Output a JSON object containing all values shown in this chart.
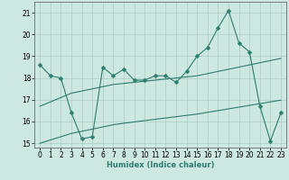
{
  "xlabel": "Humidex (Indice chaleur)",
  "background_color": "#cce8e0",
  "grid_color": "#aaccc4",
  "line_color": "#2e7d6e",
  "x_data": [
    0,
    1,
    2,
    3,
    4,
    5,
    6,
    7,
    8,
    9,
    10,
    11,
    12,
    13,
    14,
    15,
    16,
    17,
    18,
    19,
    20,
    21,
    22,
    23
  ],
  "y_main": [
    18.6,
    18.1,
    18.0,
    16.4,
    15.2,
    15.3,
    18.5,
    18.1,
    18.4,
    17.9,
    17.9,
    18.1,
    18.1,
    17.8,
    18.3,
    19.0,
    19.4,
    20.3,
    21.1,
    19.6,
    19.2,
    16.7,
    15.1,
    16.4
  ],
  "y_reg_upper": [
    16.7,
    16.9,
    17.1,
    17.3,
    17.4,
    17.5,
    17.6,
    17.7,
    17.75,
    17.8,
    17.85,
    17.9,
    17.95,
    18.0,
    18.05,
    18.1,
    18.2,
    18.3,
    18.4,
    18.5,
    18.6,
    18.7,
    18.8,
    18.9
  ],
  "y_reg_lower": [
    15.0,
    15.15,
    15.3,
    15.45,
    15.55,
    15.65,
    15.75,
    15.85,
    15.92,
    15.98,
    16.04,
    16.1,
    16.16,
    16.22,
    16.28,
    16.34,
    16.42,
    16.5,
    16.58,
    16.66,
    16.74,
    16.82,
    16.9,
    16.98
  ],
  "ylim": [
    14.8,
    21.5
  ],
  "xlim": [
    -0.5,
    23.5
  ],
  "yticks": [
    15,
    16,
    17,
    18,
    19,
    20,
    21
  ],
  "xticks": [
    0,
    1,
    2,
    3,
    4,
    5,
    6,
    7,
    8,
    9,
    10,
    11,
    12,
    13,
    14,
    15,
    16,
    17,
    18,
    19,
    20,
    21,
    22,
    23
  ]
}
